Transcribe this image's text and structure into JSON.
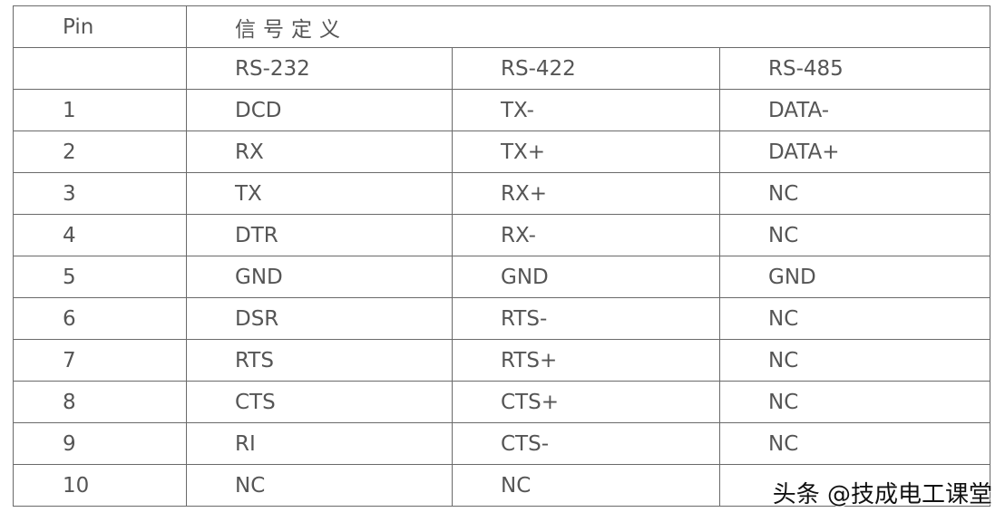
{
  "header": {
    "pin": "Pin",
    "signal_definition": "信号定义"
  },
  "standards": [
    "RS-232",
    "RS-422",
    "RS-485"
  ],
  "rows": [
    {
      "pin": "1",
      "rs232": "DCD",
      "rs422": "TX-",
      "rs485": "DATA-"
    },
    {
      "pin": "2",
      "rs232": "RX",
      "rs422": "TX+",
      "rs485": "DATA+"
    },
    {
      "pin": "3",
      "rs232": "TX",
      "rs422": "RX+",
      "rs485": "NC"
    },
    {
      "pin": "4",
      "rs232": "DTR",
      "rs422": "RX-",
      "rs485": "NC"
    },
    {
      "pin": "5",
      "rs232": "GND",
      "rs422": "GND",
      "rs485": "GND"
    },
    {
      "pin": "6",
      "rs232": "DSR",
      "rs422": "RTS-",
      "rs485": "NC"
    },
    {
      "pin": "7",
      "rs232": "RTS",
      "rs422": "RTS+",
      "rs485": "NC"
    },
    {
      "pin": "8",
      "rs232": "CTS",
      "rs422": "CTS+",
      "rs485": "NC"
    },
    {
      "pin": "9",
      "rs232": "RI",
      "rs422": "CTS-",
      "rs485": "NC"
    },
    {
      "pin": "10",
      "rs232": "NC",
      "rs422": "NC",
      "rs485": ""
    }
  ],
  "watermark": "头条 @技成电工课堂"
}
